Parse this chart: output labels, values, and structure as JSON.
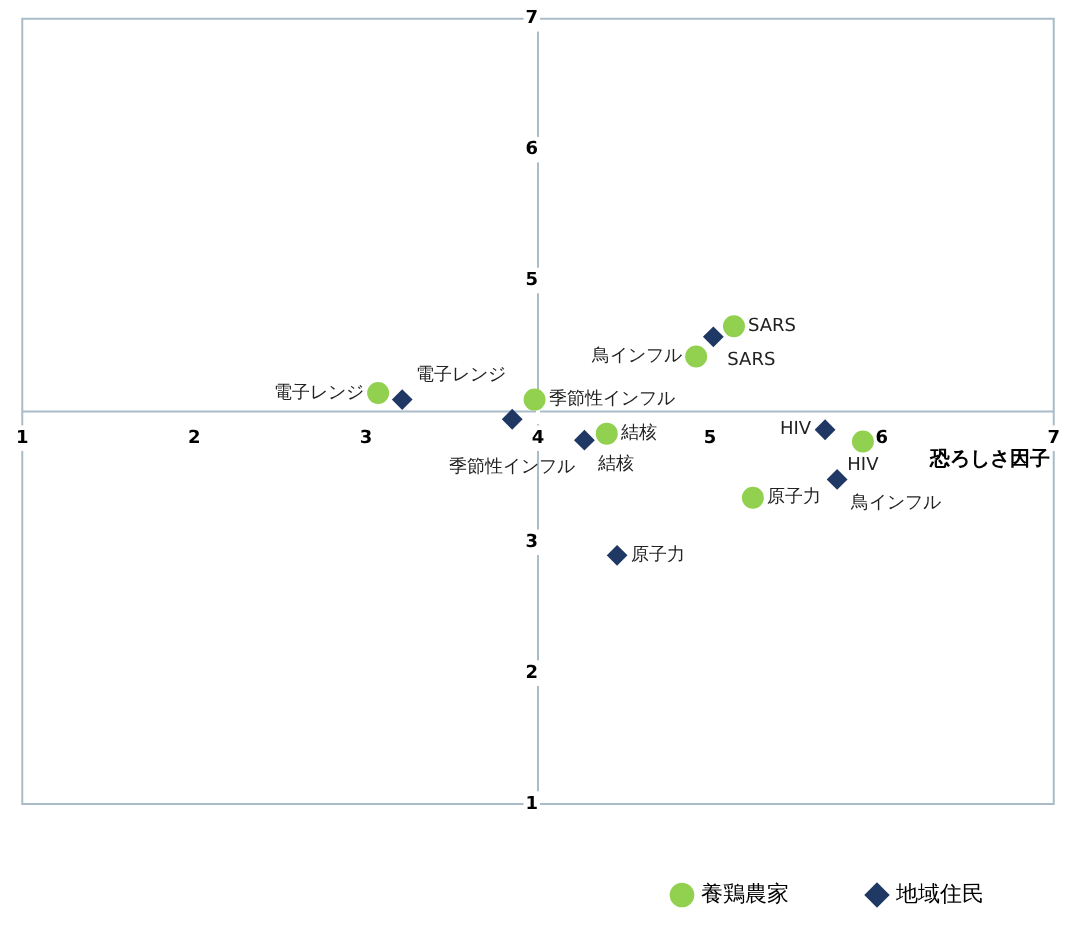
{
  "chart_data": {
    "type": "scatter",
    "xlabel": "恐ろしさ因子",
    "xlim": [
      1,
      7
    ],
    "ylim": [
      1,
      7
    ],
    "xticks": [
      1,
      2,
      3,
      4,
      5,
      6,
      7
    ],
    "yticks": [
      1,
      2,
      3,
      {
        "value": 4,
        "label": null
      },
      5,
      6,
      7
    ],
    "grid": false,
    "legend": "bottom right",
    "series": [
      {
        "name": "養鶏農家",
        "color": "#92d050",
        "marker": "circle",
        "x": [
          3.07,
          3.98,
          4.4,
          4.92,
          5.14,
          5.89,
          5.25
        ],
        "values": [
          4.14,
          4.09,
          3.83,
          4.42,
          4.65,
          3.77,
          3.34
        ]
      },
      {
        "name": "地域住民",
        "color": "#1f3864",
        "marker": "diamond",
        "x": [
          3.21,
          3.85,
          4.27,
          5.02,
          5.67,
          5.74,
          4.46
        ],
        "values": [
          4.09,
          3.94,
          3.78,
          4.57,
          3.86,
          3.48,
          2.9
        ]
      }
    ],
    "annotations": [
      {
        "text": "電子レンジ",
        "x": 3.07,
        "y": 4.14
      },
      {
        "text": "季節性インフル",
        "x": 3.98,
        "y": 4.09
      },
      {
        "text": "結核",
        "x": 4.4,
        "y": 3.83
      },
      {
        "text": "鳥インフル",
        "x": 4.92,
        "y": 4.42
      },
      {
        "text": "SARS",
        "x": 5.14,
        "y": 4.65
      },
      {
        "text": "HIV",
        "x": 5.89,
        "y": 3.77
      },
      {
        "text": "原子力",
        "x": 5.25,
        "y": 3.34
      },
      {
        "text": "電子レンジ",
        "x": 3.21,
        "y": 4.09
      },
      {
        "text": "季節性インフル",
        "x": 3.85,
        "y": 3.94
      },
      {
        "text": "結核",
        "x": 4.27,
        "y": 3.78
      },
      {
        "text": "SARS",
        "x": 5.02,
        "y": 4.57
      },
      {
        "text": "HIV",
        "x": 5.67,
        "y": 3.86
      },
      {
        "text": "鳥インフル",
        "x": 5.74,
        "y": 3.48
      },
      {
        "text": "原子力",
        "x": 4.46,
        "y": 2.9
      }
    ]
  }
}
